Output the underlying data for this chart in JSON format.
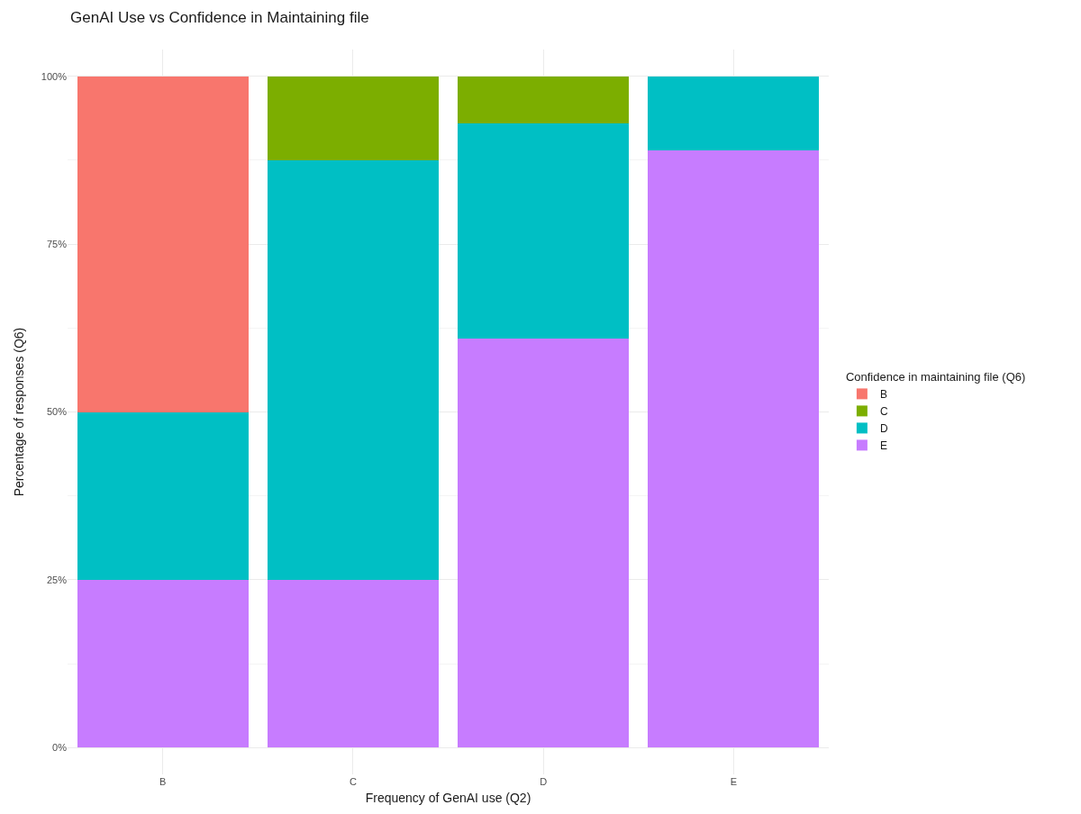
{
  "chart_data": {
    "type": "bar",
    "title": "GenAI Use vs Confidence in Maintaining file",
    "xlabel": "Frequency of GenAI use (Q2)",
    "ylabel": "Percentage of responses (Q6)",
    "legend_title": "Confidence in maintaining file (Q6)",
    "categories": [
      "B",
      "C",
      "D",
      "E"
    ],
    "series": [
      {
        "name": "E",
        "color": "#c77cff",
        "values": [
          25,
          25,
          61,
          89
        ]
      },
      {
        "name": "D",
        "color": "#00bfc4",
        "values": [
          25,
          62.5,
          32,
          11
        ]
      },
      {
        "name": "C",
        "color": "#7cae00",
        "values": [
          null,
          12.5,
          7,
          null
        ]
      },
      {
        "name": "B",
        "color": "#f8766d",
        "values": [
          50,
          null,
          null,
          null
        ]
      }
    ],
    "stacked": true,
    "ylim": [
      -4,
      104
    ],
    "yticks": [
      {
        "value": 0,
        "label": "0%"
      },
      {
        "value": 25,
        "label": "25%"
      },
      {
        "value": 50,
        "label": "50%"
      },
      {
        "value": 75,
        "label": "75%"
      },
      {
        "value": 100,
        "label": "100%"
      }
    ],
    "grid": true,
    "legend": "right"
  }
}
